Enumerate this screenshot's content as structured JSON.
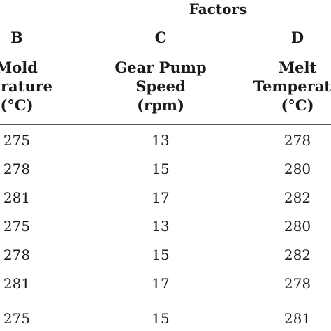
{
  "table": {
    "group_header": "Factors",
    "columns": [
      {
        "letter": "B",
        "header_lines": [
          "Mold",
          "perature",
          "(°C)"
        ]
      },
      {
        "letter": "C",
        "header_lines": [
          "Gear Pump",
          "Speed",
          "(rpm)"
        ]
      },
      {
        "letter": "D",
        "header_lines": [
          "Melt",
          "Temperatu",
          "(°C)"
        ]
      }
    ],
    "rows": [
      [
        "275",
        "13",
        "278"
      ],
      [
        "278",
        "15",
        "280"
      ],
      [
        "281",
        "17",
        "282"
      ],
      [
        "275",
        "13",
        "280"
      ],
      [
        "278",
        "15",
        "282"
      ],
      [
        "281",
        "17",
        "278"
      ],
      [
        "275",
        "15",
        "281"
      ]
    ]
  }
}
